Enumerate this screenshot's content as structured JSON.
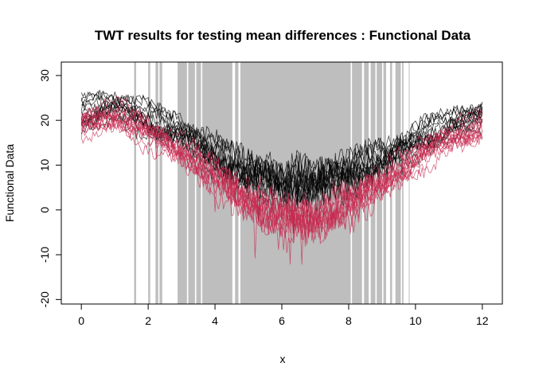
{
  "chart_data": {
    "type": "line",
    "title": "TWT results for testing mean differences : Functional Data",
    "xlabel": "x",
    "ylabel": "Functional Data",
    "xlim": [
      -0.6,
      12.6
    ],
    "ylim": [
      -21,
      33
    ],
    "x_ticks": [
      0,
      2,
      4,
      6,
      8,
      10,
      12
    ],
    "y_ticks": [
      -20,
      -10,
      0,
      10,
      20,
      30
    ],
    "grid": false,
    "legend": "none",
    "significance_shading": {
      "color": "#bebebe",
      "intervals": [
        [
          1.58,
          1.64
        ],
        [
          2.0,
          2.06
        ],
        [
          2.22,
          2.3
        ],
        [
          2.34,
          2.42
        ],
        [
          2.88,
          3.16
        ],
        [
          3.2,
          3.4
        ],
        [
          3.44,
          3.58
        ],
        [
          3.62,
          4.52
        ],
        [
          4.6,
          4.7
        ],
        [
          4.76,
          8.06
        ],
        [
          8.1,
          8.4
        ],
        [
          8.46,
          8.6
        ],
        [
          8.66,
          8.8
        ],
        [
          8.84,
          9.0
        ],
        [
          9.04,
          9.12
        ],
        [
          9.24,
          9.3
        ],
        [
          9.4,
          9.56
        ],
        [
          9.6,
          9.64
        ],
        [
          9.8,
          9.82
        ]
      ]
    },
    "series": [
      {
        "color": "#000000",
        "mean": [
          [
            0,
            21
          ],
          [
            1,
            23
          ],
          [
            2,
            20
          ],
          [
            3,
            17
          ],
          [
            4,
            12
          ],
          [
            5,
            8
          ],
          [
            6,
            6
          ],
          [
            7,
            6
          ],
          [
            8,
            8
          ],
          [
            9,
            11
          ],
          [
            10,
            15
          ],
          [
            11,
            19
          ],
          [
            12,
            21
          ]
        ]
      },
      {
        "color": "#c8284f",
        "mean": [
          [
            0,
            19
          ],
          [
            1,
            21
          ],
          [
            2,
            17
          ],
          [
            3,
            13
          ],
          [
            4,
            7
          ],
          [
            5,
            2
          ],
          [
            6,
            -2
          ],
          [
            7,
            -2
          ],
          [
            8,
            1
          ],
          [
            9,
            6
          ],
          [
            10,
            11
          ],
          [
            11,
            16
          ],
          [
            12,
            18
          ]
        ]
      }
    ]
  }
}
